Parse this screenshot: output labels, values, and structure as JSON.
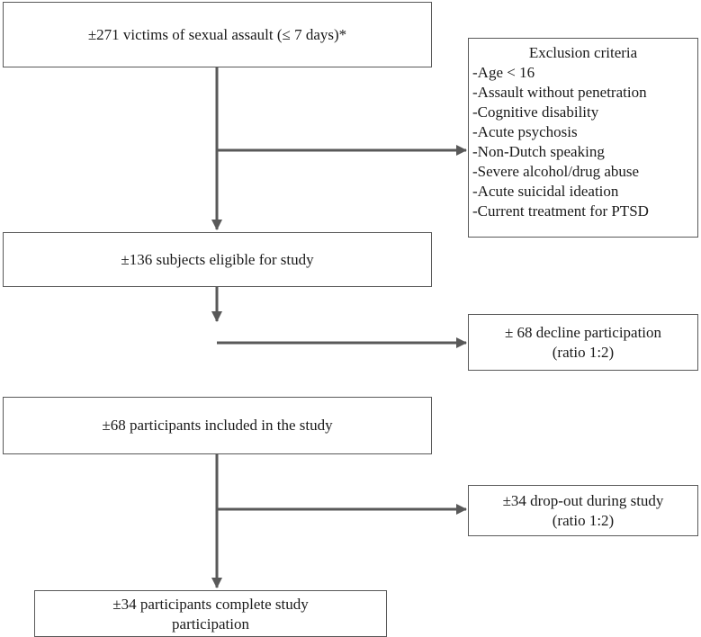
{
  "flow": {
    "step1": "±271 victims of sexual assault (≤ 7 days)*",
    "step2": "±136 subjects eligible for study",
    "step3": "±68 participants included in the study",
    "step4": [
      "±34 participants complete study",
      "participation"
    ]
  },
  "exclusion": {
    "title": "Exclusion criteria",
    "items": [
      "-Age < 16",
      "-Assault without penetration",
      "-Cognitive disability",
      "-Acute psychosis",
      "-Non-Dutch speaking",
      "-Severe alcohol/drug abuse",
      "-Acute suicidal ideation",
      "-Current treatment for PTSD"
    ]
  },
  "side": {
    "decline": [
      "± 68 decline participation",
      "(ratio 1:2)"
    ],
    "dropout": [
      "±34 drop-out during study",
      "(ratio 1:2)"
    ]
  },
  "colors": {
    "line": "#595959",
    "border": "#595959",
    "text": "#1a1a1a"
  }
}
